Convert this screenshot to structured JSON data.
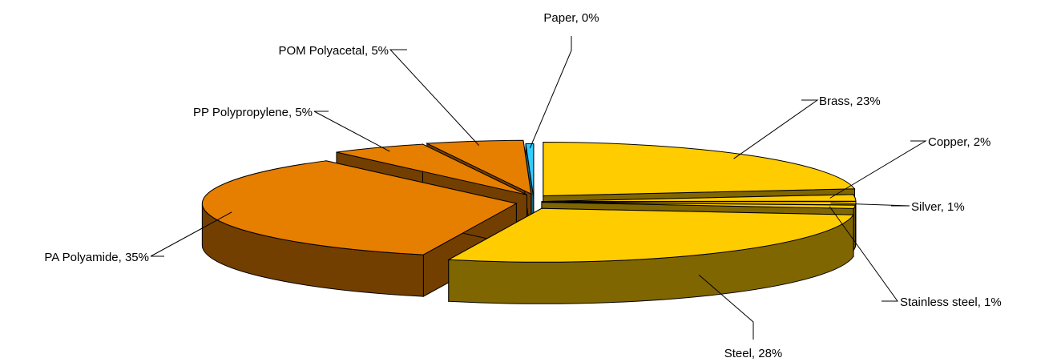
{
  "chart_data": {
    "type": "pie",
    "style": "3d-exploded",
    "title": "",
    "legend": "none",
    "slices": [
      {
        "name": "Brass",
        "value": 23,
        "label": "Brass, 23%",
        "color": "#FFCC00",
        "side_color": "#806600"
      },
      {
        "name": "Copper",
        "value": 2,
        "label": "Copper, 2%",
        "color": "#FFCC00",
        "side_color": "#806600"
      },
      {
        "name": "Silver",
        "value": 1,
        "label": "Silver, 1%",
        "color": "#FFCC00",
        "side_color": "#806600"
      },
      {
        "name": "Stainless steel",
        "value": 1,
        "label": "Stainless steel, 1%",
        "color": "#FFCC00",
        "side_color": "#806600"
      },
      {
        "name": "Steel",
        "value": 28,
        "label": "Steel, 28%",
        "color": "#FFCC00",
        "side_color": "#806600"
      },
      {
        "name": "PA Polyamide",
        "value": 35,
        "label": "PA Polyamide, 35%",
        "color": "#E67E00",
        "side_color": "#733F00"
      },
      {
        "name": "PP Polypropylene",
        "value": 5,
        "label": "PP Polypropylene, 5%",
        "color": "#E67E00",
        "side_color": "#733F00"
      },
      {
        "name": "POM Polyacetal",
        "value": 5,
        "label": "POM Polyacetal, 5%",
        "color": "#E67E00",
        "side_color": "#733F00"
      },
      {
        "name": "Paper",
        "value": 0.4,
        "label": "Paper, 0%",
        "color": "#33CCFF",
        "side_color": "#1A6680"
      }
    ]
  }
}
